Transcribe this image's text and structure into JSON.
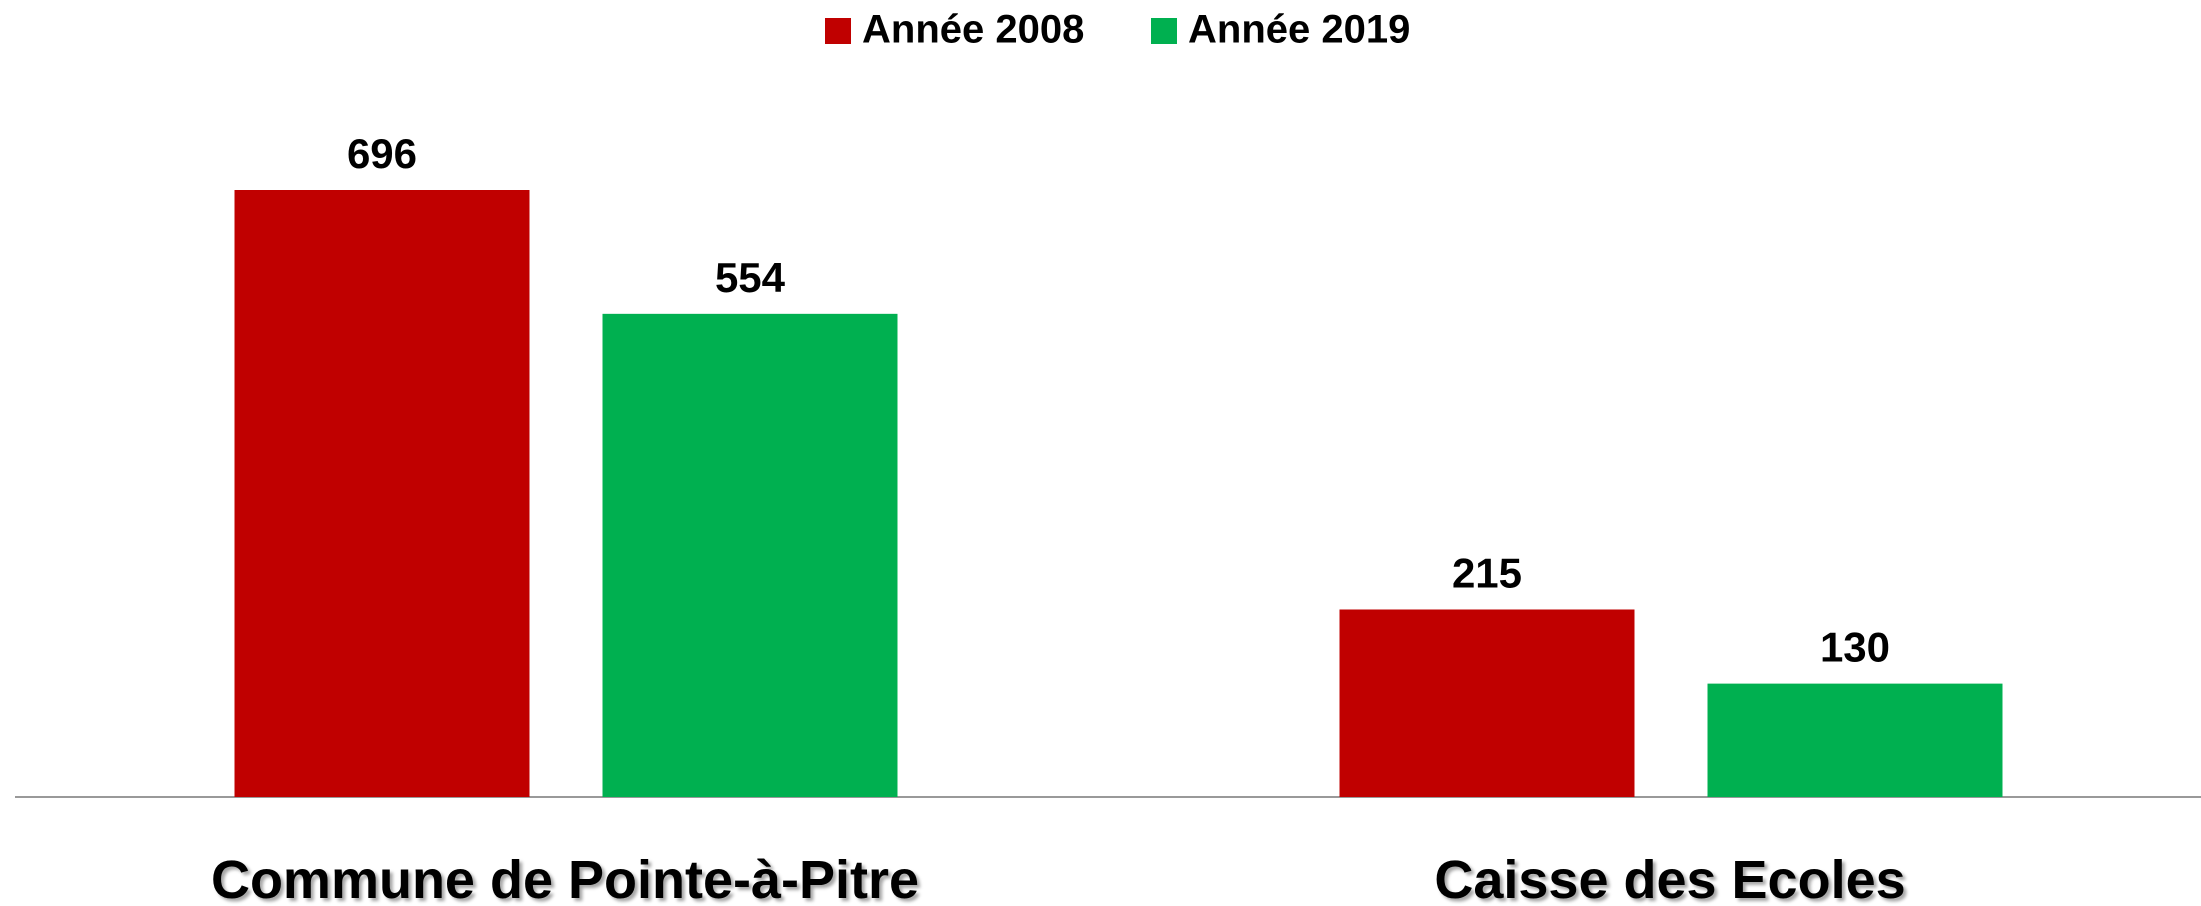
{
  "chart_data": {
    "type": "bar",
    "categories": [
      "Commune de Pointe-à-Pitre",
      "Caisse des Ecoles"
    ],
    "series": [
      {
        "name": "Année 2008",
        "color": "#c00000",
        "values": [
          696,
          215
        ]
      },
      {
        "name": "Année 2019",
        "color": "#00b050",
        "values": [
          554,
          130
        ]
      }
    ],
    "legend": "top"
  }
}
